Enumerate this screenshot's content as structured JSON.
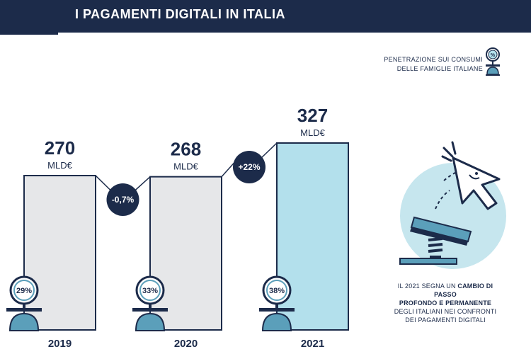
{
  "header": {
    "title": "I PAGAMENTI DIGITALI IN ITALIA"
  },
  "legend": {
    "line1": "PENETRAZIONE SUI CONSUMI",
    "line2": "DELLE FAMIGLIE ITALIANE",
    "icon": "percent-scale-icon"
  },
  "caption": {
    "part1": "IL 2021 SEGNA UN ",
    "bold1": "CAMBIO DI PASSO",
    "bold2": "PROFONDO E PERMANENTE",
    "line3": "DEGLI ITALIANI NEI CONFRONTI",
    "line4": "DEI PAGAMENTI DIGITALI"
  },
  "illustration": {
    "icon": "cursor-clicking-spring-button-icon"
  },
  "colors": {
    "navy": "#1c2b4a",
    "bar_grey": "#e6e7e9",
    "bar_blue": "#b3e0ec",
    "accent": "#5b9fba"
  },
  "chart_data": {
    "type": "bar",
    "categories": [
      "2019",
      "2020",
      "2021"
    ],
    "values": [
      270,
      268,
      327
    ],
    "unit": "MLD€",
    "penetration": [
      "29%",
      "33%",
      "38%"
    ],
    "changes": [
      "-0,7%",
      "+22%"
    ],
    "highlight": "2021"
  }
}
